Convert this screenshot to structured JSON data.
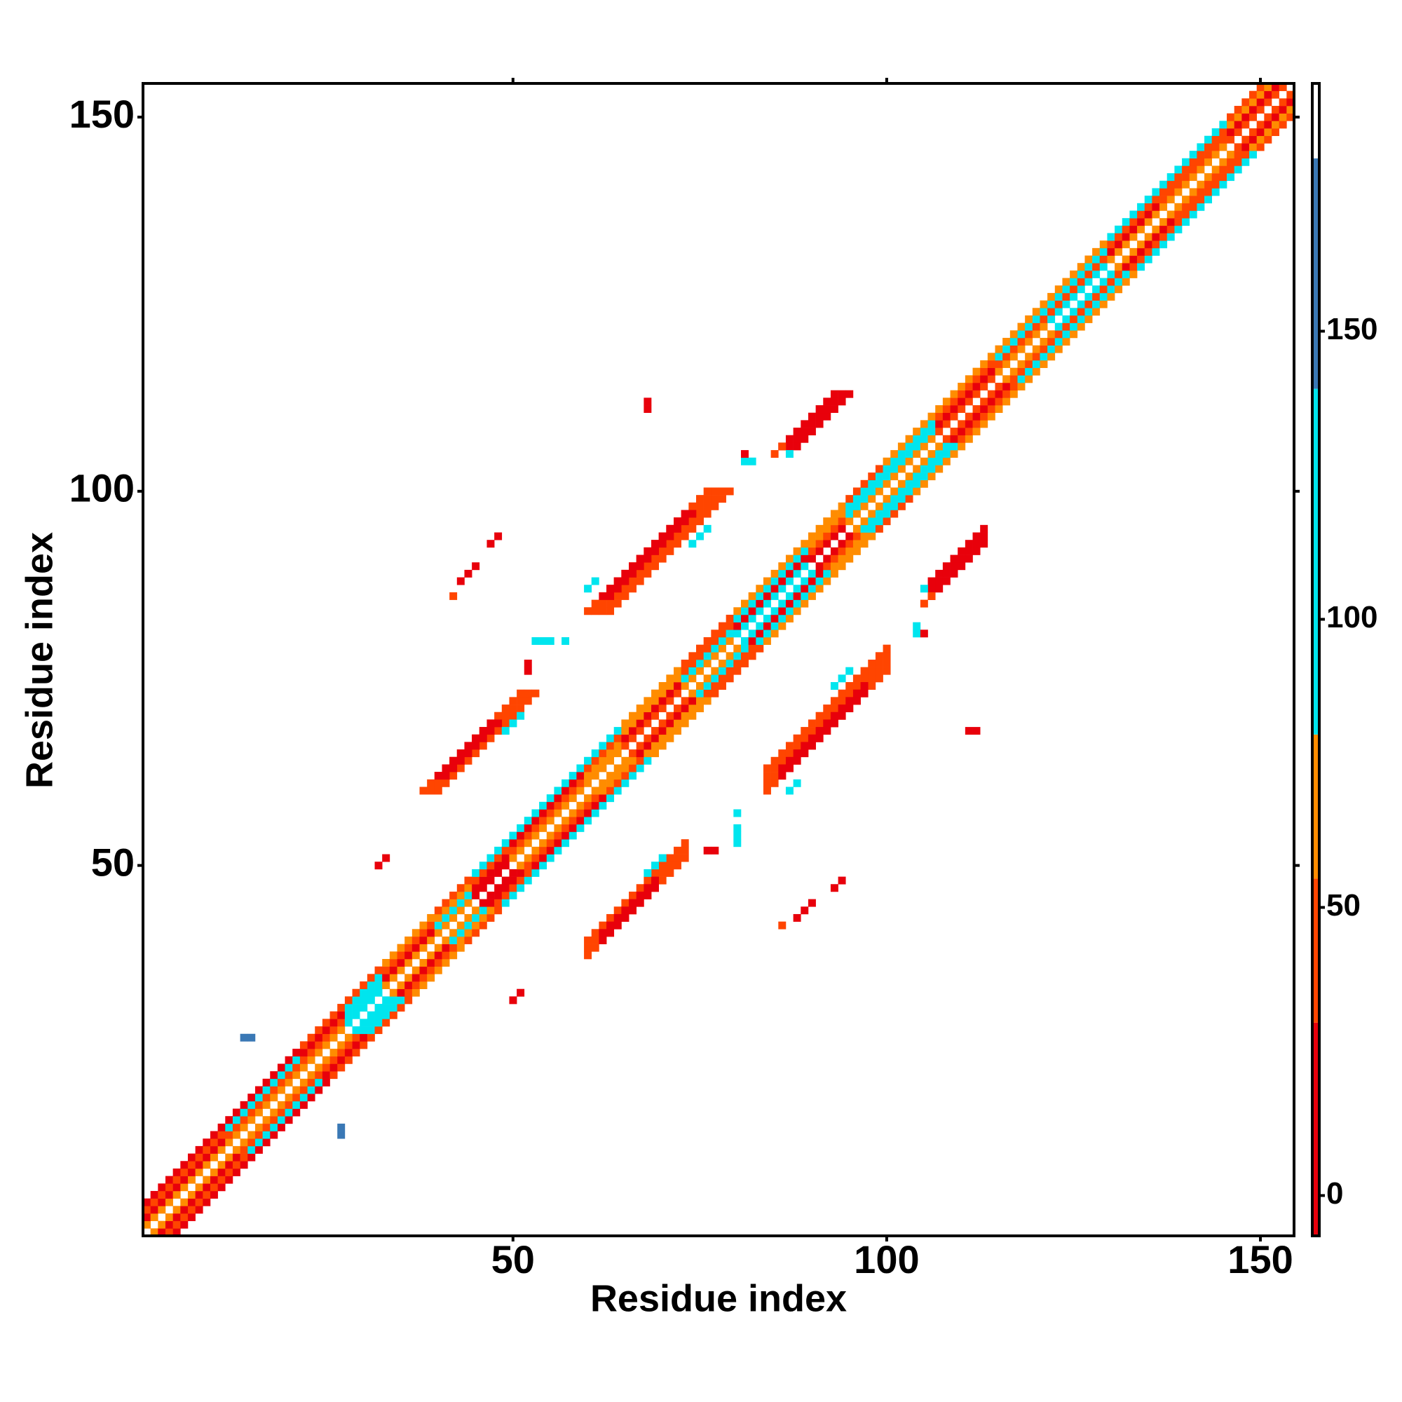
{
  "chart_data": {
    "type": "heatmap",
    "xlabel": "Residue index",
    "ylabel": "Residue index",
    "xlim": [
      0.5,
      154.5
    ],
    "ylim": [
      0.5,
      154.5
    ],
    "xticks": [
      50,
      100,
      150
    ],
    "yticks": [
      50,
      100,
      150
    ],
    "symmetric": true,
    "diagonal": [
      {
        "from": 1,
        "to": 12,
        "values": [
          65,
          10,
          40,
          10
        ]
      },
      {
        "from": 12,
        "to": 22,
        "values": [
          65,
          40,
          100,
          10
        ]
      },
      {
        "from": 22,
        "to": 28,
        "values": [
          65,
          40,
          10,
          40
        ]
      },
      {
        "from": 28,
        "to": 33,
        "values": [
          100,
          100,
          100,
          40
        ]
      },
      {
        "from": 33,
        "to": 40,
        "values": [
          65,
          10,
          40,
          65
        ]
      },
      {
        "from": 40,
        "to": 45,
        "values": [
          65,
          100,
          65,
          40
        ]
      },
      {
        "from": 45,
        "to": 50,
        "values": [
          10,
          10,
          40,
          100
        ]
      },
      {
        "from": 50,
        "to": 60,
        "values": [
          65,
          40,
          10,
          100
        ]
      },
      {
        "from": 60,
        "to": 65,
        "values": [
          65,
          65,
          40,
          100
        ]
      },
      {
        "from": 65,
        "to": 73,
        "values": [
          40,
          10,
          65,
          65
        ]
      },
      {
        "from": 73,
        "to": 80,
        "values": [
          65,
          100,
          40,
          40
        ]
      },
      {
        "from": 80,
        "to": 90,
        "values": [
          100,
          10,
          100,
          65
        ]
      },
      {
        "from": 90,
        "to": 95,
        "values": [
          10,
          40,
          65,
          65
        ]
      },
      {
        "from": 95,
        "to": 100,
        "values": [
          65,
          100,
          100,
          40
        ]
      },
      {
        "from": 100,
        "to": 107,
        "values": [
          65,
          100,
          100,
          65
        ]
      },
      {
        "from": 107,
        "to": 115,
        "values": [
          40,
          10,
          40,
          65
        ]
      },
      {
        "from": 115,
        "to": 122,
        "values": [
          65,
          40,
          100,
          65
        ]
      },
      {
        "from": 122,
        "to": 130,
        "values": [
          100,
          40,
          100,
          65
        ]
      },
      {
        "from": 130,
        "to": 137,
        "values": [
          65,
          10,
          40,
          100
        ]
      },
      {
        "from": 137,
        "to": 146,
        "values": [
          65,
          40,
          40,
          100
        ]
      },
      {
        "from": 146,
        "to": 154,
        "values": [
          40,
          10,
          65,
          40
        ]
      }
    ],
    "strips": [
      [
        60,
        38,
        14,
        3,
        40
      ],
      [
        62,
        40,
        8,
        2,
        10
      ],
      [
        68,
        49,
        3,
        1,
        100
      ],
      [
        84,
        60,
        17,
        4,
        40
      ],
      [
        86,
        62,
        12,
        2,
        10
      ],
      [
        87,
        60,
        2,
        1,
        100
      ],
      [
        93,
        74,
        3,
        1,
        100
      ],
      [
        106,
        86,
        8,
        3,
        10
      ],
      [
        105,
        85,
        2,
        1,
        40
      ],
      [
        86,
        42,
        1,
        1,
        40
      ],
      [
        88,
        43,
        3,
        1,
        10
      ],
      [
        93,
        47,
        2,
        1,
        10
      ],
      [
        76,
        52,
        1,
        1,
        10
      ],
      [
        77,
        52,
        1,
        1,
        10
      ],
      [
        80,
        53,
        1,
        3,
        100
      ],
      [
        80,
        57,
        1,
        1,
        100
      ],
      [
        111,
        68,
        1,
        1,
        10
      ],
      [
        112,
        68,
        1,
        1,
        10
      ],
      [
        104,
        81,
        1,
        2,
        100
      ],
      [
        105,
        81,
        1,
        1,
        10
      ],
      [
        105,
        87,
        1,
        1,
        100
      ],
      [
        50,
        32,
        2,
        1,
        10
      ],
      [
        27,
        14,
        1,
        2,
        150
      ]
    ],
    "colorbar": {
      "lim": [
        -7,
        193
      ],
      "ticks": [
        0,
        50,
        100,
        150
      ],
      "breaks": [
        {
          "from": -7,
          "to": 30,
          "color": "#e8000b"
        },
        {
          "from": 30,
          "to": 55,
          "color": "#ff4500"
        },
        {
          "from": 55,
          "to": 80,
          "color": "#ff8c00"
        },
        {
          "from": 80,
          "to": 140,
          "color": "#00e5ee"
        },
        {
          "from": 140,
          "to": 180,
          "color": "#3a78b5"
        },
        {
          "from": 180,
          "to": 193,
          "color": "#ffffff"
        }
      ]
    }
  }
}
